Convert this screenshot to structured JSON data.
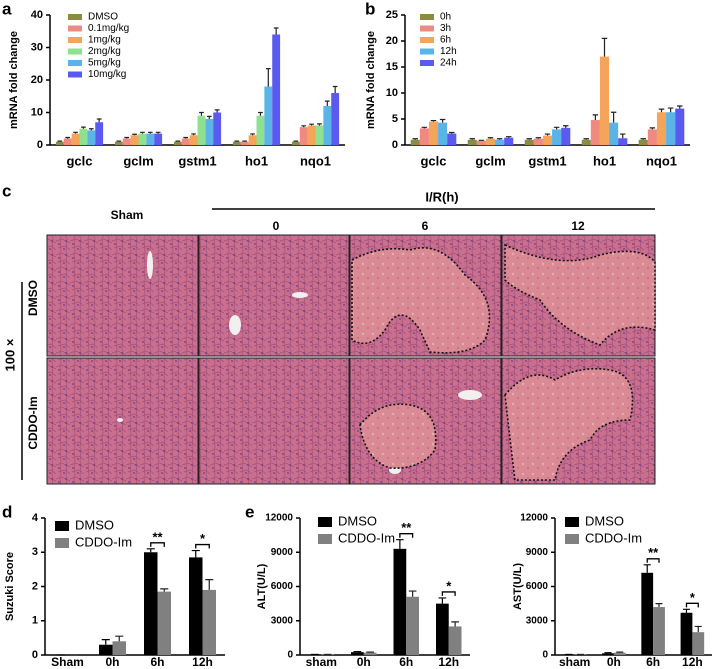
{
  "chart_data": [
    {
      "type": "bar",
      "panel": "a",
      "y_label": "mRNA fold change",
      "categories": [
        "gclc",
        "gclm",
        "gstm1",
        "ho1",
        "nqo1"
      ],
      "ylim": [
        0,
        40
      ],
      "yticks": [
        0,
        10,
        20,
        30,
        40
      ],
      "series": [
        {
          "name": "DMSO",
          "color": "#8b8b45",
          "values": [
            1,
            1,
            1,
            1,
            1
          ],
          "errors": [
            0.2,
            0.2,
            0.2,
            0.2,
            0.2
          ]
        },
        {
          "name": "0.1mg/kg",
          "color": "#f08a80",
          "values": [
            2,
            2,
            2,
            1,
            5.5
          ],
          "errors": [
            0.3,
            0.3,
            0.3,
            0.2,
            0.4
          ]
        },
        {
          "name": "1mg/kg",
          "color": "#f5a55a",
          "values": [
            3.5,
            3,
            3,
            3,
            6
          ],
          "errors": [
            0.4,
            0.3,
            0.4,
            0.4,
            0.4
          ]
        },
        {
          "name": "2mg/kg",
          "color": "#8fe08f",
          "values": [
            5,
            3.5,
            9,
            9,
            6
          ],
          "errors": [
            0.5,
            0.4,
            1,
            1,
            0.5
          ]
        },
        {
          "name": "5mg/kg",
          "color": "#5ab4e8",
          "values": [
            4.5,
            3.5,
            8,
            18,
            12
          ],
          "errors": [
            0.5,
            0.4,
            0.8,
            5.5,
            1.5
          ]
        },
        {
          "name": "10mg/kg",
          "color": "#5a5af0",
          "values": [
            7,
            3.5,
            10,
            34,
            16
          ],
          "errors": [
            1,
            0.4,
            0.8,
            2,
            2
          ]
        }
      ]
    },
    {
      "type": "bar",
      "panel": "b",
      "y_label": "mRNA fold change",
      "categories": [
        "gclc",
        "gclm",
        "gstm1",
        "ho1",
        "nqo1"
      ],
      "ylim": [
        0,
        25
      ],
      "yticks": [
        0,
        5,
        10,
        15,
        20,
        25
      ],
      "series": [
        {
          "name": "0h",
          "color": "#8b8b45",
          "values": [
            1,
            1,
            1,
            1,
            1
          ],
          "errors": [
            0.2,
            0.2,
            0.2,
            0.2,
            0.2
          ]
        },
        {
          "name": "3h",
          "color": "#f08a80",
          "values": [
            3.2,
            0.8,
            1.2,
            4.8,
            3
          ],
          "errors": [
            0.2,
            0.1,
            0.2,
            1,
            0.3
          ]
        },
        {
          "name": "6h",
          "color": "#f5a55a",
          "values": [
            4.5,
            1.2,
            1.8,
            17,
            6.3
          ],
          "errors": [
            0.2,
            0.2,
            0.3,
            3.5,
            0.6
          ]
        },
        {
          "name": "12h",
          "color": "#5ab4e8",
          "values": [
            4.3,
            1,
            3,
            4.3,
            6.3
          ],
          "errors": [
            0.6,
            0.2,
            0.4,
            2,
            0.8
          ]
        },
        {
          "name": "24h",
          "color": "#5a5af0",
          "values": [
            2.2,
            1.4,
            3.3,
            1.3,
            7
          ],
          "errors": [
            0.2,
            0.2,
            0.4,
            0.8,
            0.5
          ]
        }
      ]
    },
    {
      "type": "bar",
      "panel": "d",
      "y_label": "Suzuki Score",
      "categories": [
        "Sham",
        "0h",
        "6h",
        "12h"
      ],
      "ylim": [
        0,
        4
      ],
      "yticks": [
        0,
        1,
        2,
        3,
        4
      ],
      "annotations": [
        "**",
        "*"
      ],
      "series": [
        {
          "name": "DMSO",
          "color": "#000000",
          "values": [
            0,
            0.3,
            3.0,
            2.85
          ],
          "errors": [
            0,
            0.15,
            0.1,
            0.2
          ]
        },
        {
          "name": "CDDO-Im",
          "color": "#808080",
          "values": [
            0,
            0.4,
            1.85,
            1.9
          ],
          "errors": [
            0,
            0.15,
            0.08,
            0.3
          ]
        }
      ]
    },
    {
      "type": "bar",
      "panel": "e",
      "y_label": "ALT(U/L)",
      "categories": [
        "sham",
        "0h",
        "6h",
        "12h"
      ],
      "ylim": [
        0,
        12000
      ],
      "yticks": [
        0,
        3000,
        6000,
        9000,
        12000
      ],
      "annotations": [
        "**",
        "*"
      ],
      "series": [
        {
          "name": "DMSO",
          "color": "#000000",
          "values": [
            50,
            250,
            9300,
            4500
          ],
          "errors": [
            0,
            50,
            800,
            500
          ]
        },
        {
          "name": "CDDO-Im",
          "color": "#808080",
          "values": [
            50,
            200,
            5100,
            2500
          ],
          "errors": [
            0,
            50,
            500,
            400
          ]
        }
      ]
    },
    {
      "type": "bar",
      "y_label": "AST(U/L)",
      "categories": [
        "sham",
        "0h",
        "6h",
        "12h"
      ],
      "ylim": [
        0,
        12000
      ],
      "yticks": [
        0,
        3000,
        6000,
        9000,
        12000
      ],
      "annotations": [
        "**",
        "*"
      ],
      "series": [
        {
          "name": "DMSO",
          "color": "#000000",
          "values": [
            50,
            150,
            7200,
            3700
          ],
          "errors": [
            0,
            50,
            700,
            300
          ]
        },
        {
          "name": "CDDO-Im",
          "color": "#808080",
          "values": [
            50,
            200,
            4200,
            2000
          ],
          "errors": [
            0,
            50,
            300,
            500
          ]
        }
      ]
    }
  ],
  "histology": {
    "panel": "c",
    "group_label": "I/R(h)",
    "columns": [
      "Sham",
      "0",
      "6",
      "12"
    ],
    "rows": [
      "DMSO",
      "CDDO-Im"
    ],
    "magnification": "100 ×"
  }
}
